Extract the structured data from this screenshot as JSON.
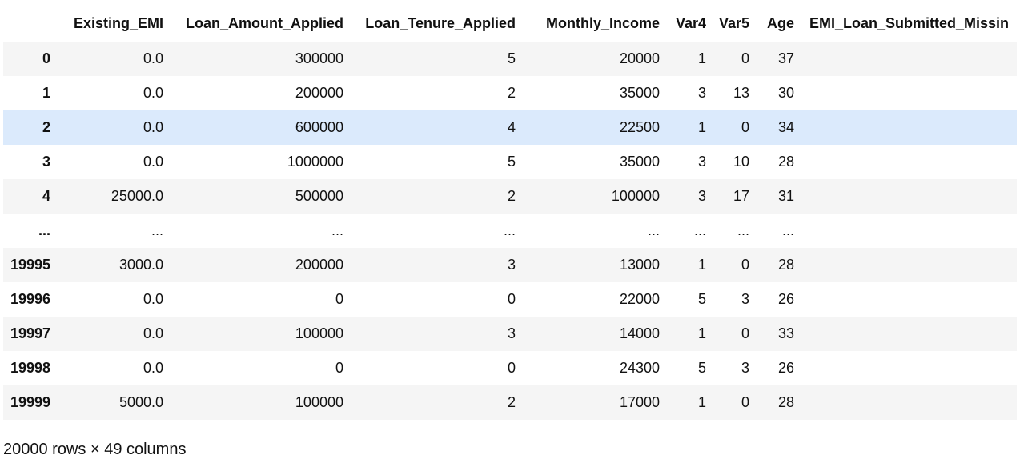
{
  "table": {
    "columns": [
      "",
      "Existing_EMI",
      "Loan_Amount_Applied",
      "Loan_Tenure_Applied",
      "Monthly_Income",
      "Var4",
      "Var5",
      "Age",
      "EMI_Loan_Submitted_Missin"
    ],
    "rows": [
      {
        "index": "0",
        "cells": [
          "0.0",
          "300000",
          "5",
          "20000",
          "1",
          "0",
          "37",
          ""
        ]
      },
      {
        "index": "1",
        "cells": [
          "0.0",
          "200000",
          "2",
          "35000",
          "3",
          "13",
          "30",
          ""
        ]
      },
      {
        "index": "2",
        "cells": [
          "0.0",
          "600000",
          "4",
          "22500",
          "1",
          "0",
          "34",
          ""
        ]
      },
      {
        "index": "3",
        "cells": [
          "0.0",
          "1000000",
          "5",
          "35000",
          "3",
          "10",
          "28",
          ""
        ]
      },
      {
        "index": "4",
        "cells": [
          "25000.0",
          "500000",
          "2",
          "100000",
          "3",
          "17",
          "31",
          ""
        ]
      },
      {
        "index": "...",
        "cells": [
          "...",
          "...",
          "...",
          "...",
          "...",
          "...",
          "...",
          "."
        ]
      },
      {
        "index": "19995",
        "cells": [
          "3000.0",
          "200000",
          "3",
          "13000",
          "1",
          "0",
          "28",
          ""
        ]
      },
      {
        "index": "19996",
        "cells": [
          "0.0",
          "0",
          "0",
          "22000",
          "5",
          "3",
          "26",
          ""
        ]
      },
      {
        "index": "19997",
        "cells": [
          "0.0",
          "100000",
          "3",
          "14000",
          "1",
          "0",
          "33",
          ""
        ]
      },
      {
        "index": "19998",
        "cells": [
          "0.0",
          "0",
          "0",
          "24300",
          "5",
          "3",
          "26",
          ""
        ]
      },
      {
        "index": "19999",
        "cells": [
          "5000.0",
          "100000",
          "2",
          "17000",
          "1",
          "0",
          "28",
          ""
        ]
      }
    ],
    "hovered_row": 2
  },
  "footer": {
    "shape_text": "20000 rows × 49 columns"
  },
  "colors": {
    "row_stripe": "#f5f5f5",
    "row_hover": "#dbeafc",
    "header_border": "#000000"
  }
}
